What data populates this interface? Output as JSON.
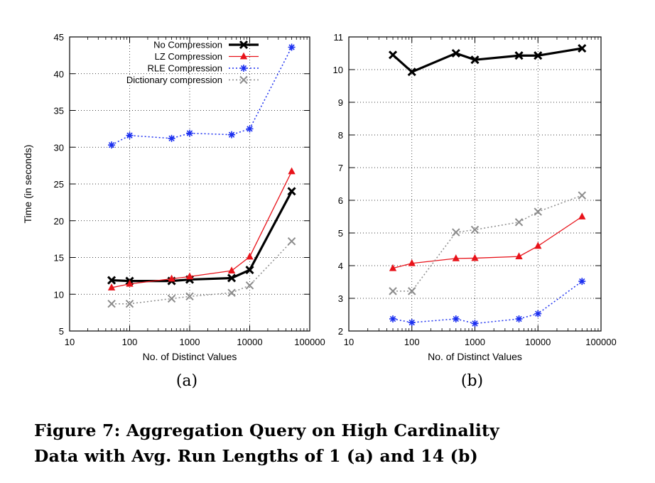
{
  "caption": {
    "line1": "Figure 7:  Aggregation Query on High Cardinality",
    "line2": "Data with Avg. Run Lengths of 1 (a) and 14 (b)"
  },
  "chart_data": [
    {
      "type": "line",
      "panel_label": "(a)",
      "xlabel": "No. of Distinct Values",
      "ylabel": "Time (in seconds)",
      "x_scale": "log",
      "xlim": [
        10,
        100000
      ],
      "ylim": [
        5,
        45
      ],
      "xticks": [
        10,
        100,
        1000,
        10000,
        100000
      ],
      "xtick_labels": [
        "10",
        "100",
        "1000",
        "10000",
        "100000"
      ],
      "yticks": [
        5,
        10,
        15,
        20,
        25,
        30,
        35,
        40,
        45
      ],
      "grid": true,
      "legend_position": "top-left",
      "x": [
        50,
        100,
        500,
        1000,
        5000,
        10000,
        50000
      ],
      "series": [
        {
          "name": "No Compression",
          "color": "#000000",
          "marker": "x-cross",
          "values": [
            11.9,
            11.8,
            11.8,
            12.0,
            12.2,
            13.3,
            24.0
          ]
        },
        {
          "name": "LZ Compression",
          "color": "#e8131a",
          "marker": "triangle",
          "values": [
            10.9,
            11.4,
            12.1,
            12.4,
            13.2,
            15.1,
            26.7
          ]
        },
        {
          "name": "RLE Compression",
          "color": "#1b2ff0",
          "marker": "asterisk",
          "values": [
            30.3,
            31.6,
            31.2,
            31.9,
            31.7,
            32.5,
            43.6
          ]
        },
        {
          "name": "Dictionary compression",
          "color": "#8c8c8c",
          "marker": "x-cross",
          "values": [
            8.7,
            8.7,
            9.4,
            9.7,
            10.2,
            11.2,
            17.2
          ]
        }
      ]
    },
    {
      "type": "line",
      "panel_label": "(b)",
      "xlabel": "No. of Distinct Values",
      "ylabel": "",
      "x_scale": "log",
      "xlim": [
        10,
        100000
      ],
      "ylim": [
        2,
        11
      ],
      "xticks": [
        10,
        100,
        1000,
        10000,
        100000
      ],
      "xtick_labels": [
        "10",
        "100",
        "1000",
        "10000",
        "100000"
      ],
      "yticks": [
        2,
        3,
        4,
        5,
        6,
        7,
        8,
        9,
        10,
        11
      ],
      "grid": true,
      "x": [
        50,
        100,
        500,
        1000,
        5000,
        10000,
        50000
      ],
      "series": [
        {
          "color": "#000000",
          "marker": "x-cross",
          "values": [
            10.45,
            9.93,
            10.5,
            10.3,
            10.43,
            10.43,
            10.65
          ]
        },
        {
          "color": "#e8131a",
          "marker": "triangle",
          "values": [
            3.92,
            4.07,
            4.22,
            4.23,
            4.28,
            4.6,
            5.5
          ]
        },
        {
          "color": "#1b2ff0",
          "marker": "asterisk",
          "values": [
            2.37,
            2.26,
            2.37,
            2.23,
            2.37,
            2.53,
            3.52
          ]
        },
        {
          "color": "#8c8c8c",
          "marker": "x-cross",
          "values": [
            3.22,
            3.22,
            5.02,
            5.1,
            5.33,
            5.65,
            6.15
          ]
        }
      ]
    }
  ]
}
